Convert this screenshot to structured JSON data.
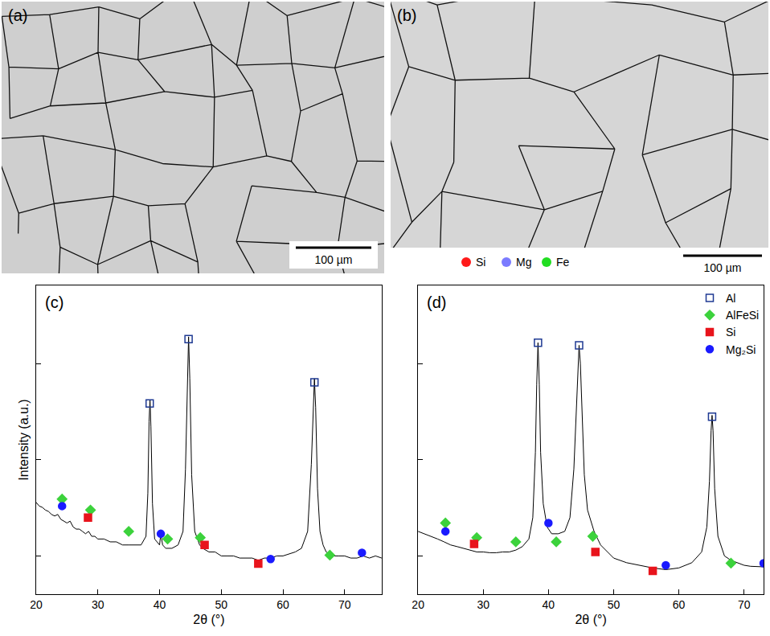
{
  "panels": {
    "a": {
      "label": "(a)",
      "scale_bar": "100 µm"
    },
    "b": {
      "label": "(b)",
      "scale_bar": "100 µm",
      "element_key": [
        {
          "name": "Si",
          "color": "#ff1a1a"
        },
        {
          "name": "Mg",
          "color": "#7b7bff"
        },
        {
          "name": "Fe",
          "color": "#22dd22"
        }
      ]
    }
  },
  "chart_data": [
    {
      "type": "line",
      "label": "(c)",
      "x_label": "2θ (°)",
      "y_label": "Intensity (a.u.)",
      "log": "y",
      "tick_labels": "x",
      "xlim": [
        20,
        76
      ],
      "xticks": [
        20,
        30,
        40,
        50,
        60,
        70
      ],
      "ylim": [
        4,
        6500
      ],
      "yticks": [
        10,
        100,
        1000
      ],
      "x": [
        20,
        20.5,
        21,
        21.5,
        22,
        22.5,
        23,
        23.5,
        24,
        24.5,
        25,
        25.5,
        26,
        26.5,
        27,
        27.5,
        28,
        28.5,
        29,
        29.5,
        30,
        31,
        32,
        33,
        34,
        35,
        36,
        37,
        37.8,
        38.1,
        38.3,
        38.45,
        38.6,
        38.85,
        39.2,
        40,
        40.2,
        40.5,
        41,
        42,
        43,
        43.8,
        44.2,
        44.5,
        44.7,
        44.9,
        45.2,
        45.7,
        46.5,
        47,
        48,
        49,
        50,
        51,
        52,
        53,
        54,
        55,
        56,
        57,
        58,
        59,
        60,
        61,
        62,
        63,
        64,
        64.6,
        64.9,
        65.1,
        65.3,
        65.6,
        66,
        66.5,
        67,
        68,
        69,
        70,
        71,
        72,
        73,
        74,
        75,
        76
      ],
      "values": [
        36,
        33,
        32,
        30,
        29,
        27,
        26,
        27,
        24,
        23,
        22,
        23,
        20,
        19,
        19,
        18,
        17,
        18,
        16,
        16,
        15,
        15,
        14,
        14,
        13,
        13,
        13,
        13,
        16,
        45,
        250,
        420,
        220,
        35,
        15,
        13,
        17,
        13,
        12,
        12,
        13,
        18,
        80,
        700,
        1900,
        700,
        70,
        18,
        13,
        12,
        11,
        11,
        10,
        10,
        10,
        9.5,
        9.5,
        9.5,
        9,
        9.5,
        9.5,
        10,
        10,
        10.5,
        11,
        12,
        18,
        90,
        400,
        700,
        350,
        50,
        18,
        13,
        11,
        10,
        10,
        10,
        9.5,
        9.5,
        10,
        9.5,
        10,
        9.5
      ],
      "color": "#000000",
      "series": [
        {
          "name": "Al",
          "color": "#1f3a93",
          "marker": "square-open",
          "x": [
            38.4,
            44.7,
            65.1
          ],
          "values": [
            385,
            1800,
            640
          ]
        },
        {
          "name": "AlFeSi",
          "color": "#3cd23c",
          "marker": "diamond",
          "x": [
            24.2,
            28.8,
            35,
            41.3,
            46.6,
            67.6
          ],
          "values": [
            39,
            30,
            18,
            15,
            15.5,
            10.2
          ]
        },
        {
          "name": "Si",
          "color": "#e8141c",
          "marker": "square",
          "x": [
            28.4,
            47.3,
            56
          ],
          "values": [
            25,
            13,
            8.3
          ]
        },
        {
          "name": "Mg₂Si",
          "color": "#1a1aff",
          "marker": "circle",
          "x": [
            24.2,
            40.2,
            58,
            72.8
          ],
          "values": [
            33,
            17,
            9.3,
            10.8
          ]
        }
      ]
    },
    {
      "type": "line",
      "label": "(d)",
      "x_label": "2θ (°)",
      "log": "y",
      "tick_labels": "x",
      "legend": "top right",
      "xlim": [
        20,
        73
      ],
      "xticks": [
        20,
        30,
        40,
        50,
        60,
        70
      ],
      "ylim": [
        4,
        6500
      ],
      "yticks": [
        10,
        100,
        1000
      ],
      "x": [
        20,
        21,
        22,
        23,
        24,
        25,
        26,
        27,
        28,
        29,
        30,
        31,
        32,
        33,
        34,
        35,
        36,
        37,
        37.6,
        38,
        38.2,
        38.4,
        38.6,
        38.8,
        39.2,
        39.8,
        40.5,
        41.5,
        42.5,
        43.3,
        43.9,
        44.3,
        44.5,
        44.7,
        44.9,
        45.1,
        45.5,
        46,
        47,
        48,
        49,
        50,
        52,
        54,
        56,
        58,
        60,
        62,
        63.5,
        64.3,
        64.7,
        64.95,
        65.1,
        65.25,
        65.5,
        66,
        67,
        68,
        69,
        70,
        71,
        72,
        73
      ],
      "values": [
        18,
        17,
        16,
        15,
        14,
        13,
        12.5,
        12,
        11.5,
        11,
        11,
        10.8,
        10.8,
        11,
        11,
        11.5,
        12.5,
        15,
        25,
        120,
        600,
        1650,
        600,
        120,
        35,
        20,
        17,
        17,
        18,
        25,
        80,
        400,
        1000,
        1550,
        1000,
        400,
        70,
        30,
        18,
        13,
        11,
        9.5,
        8.5,
        8,
        7.5,
        7.2,
        7.5,
        8.5,
        11,
        20,
        60,
        200,
        290,
        200,
        50,
        16,
        10,
        9,
        8.5,
        8,
        7.8,
        7.7,
        7.7
      ],
      "color": "#000000",
      "series": [
        {
          "name": "Al",
          "color": "#1f3a93",
          "marker": "square-open",
          "x": [
            38.4,
            44.7,
            65.1
          ],
          "values": [
            1650,
            1550,
            280
          ]
        },
        {
          "name": "AlFeSi",
          "color": "#3cd23c",
          "marker": "diamond",
          "x": [
            24.2,
            29,
            35,
            41.2,
            46.8,
            68
          ],
          "values": [
            22,
            15.5,
            14,
            14,
            16,
            8.4
          ]
        },
        {
          "name": "Si",
          "color": "#e8141c",
          "marker": "square",
          "x": [
            28.6,
            47.2,
            56
          ],
          "values": [
            13.3,
            11,
            7
          ]
        },
        {
          "name": "Mg₂Si",
          "color": "#1a1aff",
          "marker": "circle",
          "x": [
            24.2,
            40,
            58,
            73
          ],
          "values": [
            18,
            22,
            8,
            8.4
          ]
        }
      ]
    }
  ]
}
